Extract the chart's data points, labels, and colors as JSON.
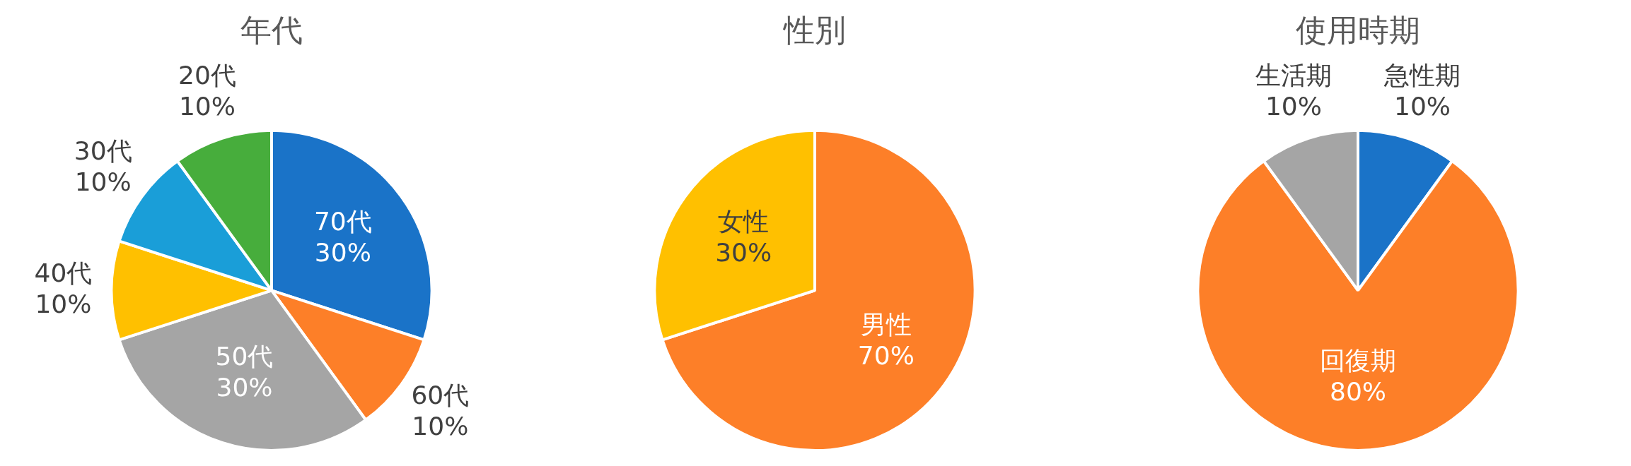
{
  "chart_data": [
    {
      "type": "pie",
      "title": "年代",
      "categories": [
        "70代",
        "60代",
        "50代",
        "40代",
        "30代",
        "20代"
      ],
      "values": [
        30,
        10,
        30,
        10,
        10,
        10
      ],
      "value_labels": [
        "30%",
        "10%",
        "30%",
        "10%",
        "10%",
        "10%"
      ],
      "colors": [
        "#1a73c8",
        "#fd7f28",
        "#a5a5a5",
        "#ffc000",
        "#1a9ed8",
        "#47ad3c"
      ],
      "legend": false
    },
    {
      "type": "pie",
      "title": "性別",
      "categories": [
        "男性",
        "女性"
      ],
      "values": [
        70,
        30
      ],
      "value_labels": [
        "70%",
        "30%"
      ],
      "colors": [
        "#fd7f28",
        "#ffc000"
      ],
      "legend": false
    },
    {
      "type": "pie",
      "title": "使用時期",
      "categories": [
        "急性期",
        "回復期",
        "生活期"
      ],
      "values": [
        10,
        80,
        10
      ],
      "value_labels": [
        "10%",
        "80%",
        "10%"
      ],
      "colors": [
        "#1a73c8",
        "#fd7f28",
        "#a5a5a5"
      ],
      "legend": false
    }
  ]
}
